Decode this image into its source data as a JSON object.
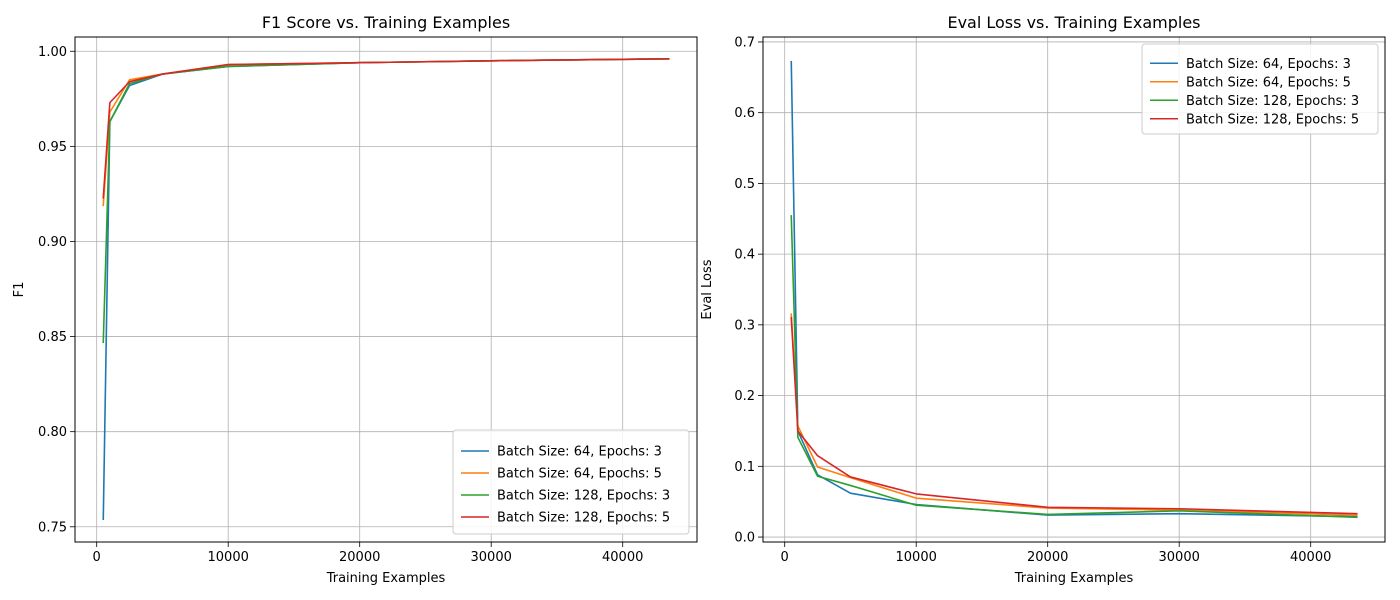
{
  "chart_data": [
    {
      "type": "line",
      "title": "F1 Score vs. Training Examples",
      "xlabel": "Training Examples",
      "ylabel": "F1",
      "xlim": [
        -1650,
        45650
      ],
      "ylim": [
        0.742,
        1.0075
      ],
      "xticks": [
        0,
        10000,
        20000,
        30000,
        40000
      ],
      "xtick_labels": [
        "0",
        "10000",
        "20000",
        "30000",
        "40000"
      ],
      "yticks": [
        0.75,
        0.8,
        0.85,
        0.9,
        0.95,
        1.0
      ],
      "ytick_labels": [
        "0.75",
        "0.80",
        "0.85",
        "0.90",
        "0.95",
        "1.00"
      ],
      "grid": true,
      "legend_position": "lower-right",
      "series": [
        {
          "name": "Batch Size: 64, Epochs: 3",
          "color": "#1f77b4",
          "x": [
            500,
            1000,
            2500,
            5000,
            10000,
            20000,
            30000,
            43500
          ],
          "y": [
            0.754,
            0.963,
            0.982,
            0.988,
            0.992,
            0.994,
            0.995,
            0.996
          ]
        },
        {
          "name": "Batch Size: 64, Epochs: 5",
          "color": "#ff7f0e",
          "x": [
            500,
            1000,
            2500,
            5000,
            10000,
            20000,
            30000,
            43500
          ],
          "y": [
            0.919,
            0.968,
            0.985,
            0.988,
            0.993,
            0.994,
            0.995,
            0.996
          ]
        },
        {
          "name": "Batch Size: 128, Epochs: 3",
          "color": "#2ca02c",
          "x": [
            500,
            1000,
            2500,
            5000,
            10000,
            20000,
            30000,
            43500
          ],
          "y": [
            0.847,
            0.963,
            0.983,
            0.988,
            0.992,
            0.994,
            0.995,
            0.996
          ]
        },
        {
          "name": "Batch Size: 128, Epochs: 5",
          "color": "#d62728",
          "x": [
            500,
            1000,
            2500,
            5000,
            10000,
            20000,
            30000,
            43500
          ],
          "y": [
            0.923,
            0.973,
            0.984,
            0.988,
            0.993,
            0.994,
            0.995,
            0.996
          ]
        }
      ]
    },
    {
      "type": "line",
      "title": "Eval Loss vs. Training Examples",
      "xlabel": "Training Examples",
      "ylabel": "Eval Loss",
      "xlim": [
        -1650,
        45650
      ],
      "ylim": [
        -0.007,
        0.707
      ],
      "xticks": [
        0,
        10000,
        20000,
        30000,
        40000
      ],
      "xtick_labels": [
        "0",
        "10000",
        "20000",
        "30000",
        "40000"
      ],
      "yticks": [
        0.0,
        0.1,
        0.2,
        0.3,
        0.4,
        0.5,
        0.6,
        0.7
      ],
      "ytick_labels": [
        "0.0",
        "0.1",
        "0.2",
        "0.3",
        "0.4",
        "0.5",
        "0.6",
        "0.7"
      ],
      "grid": true,
      "legend_position": "upper-right",
      "series": [
        {
          "name": "Batch Size: 64, Epochs: 3",
          "color": "#1f77b4",
          "x": [
            500,
            1000,
            2500,
            5000,
            10000,
            20000,
            30000,
            43500
          ],
          "y": [
            0.672,
            0.15,
            0.088,
            0.062,
            0.046,
            0.031,
            0.033,
            0.029
          ]
        },
        {
          "name": "Batch Size: 64, Epochs: 5",
          "color": "#ff7f0e",
          "x": [
            500,
            1000,
            2500,
            5000,
            10000,
            20000,
            30000,
            43500
          ],
          "y": [
            0.315,
            0.157,
            0.099,
            0.084,
            0.055,
            0.041,
            0.038,
            0.031
          ]
        },
        {
          "name": "Batch Size: 128, Epochs: 3",
          "color": "#2ca02c",
          "x": [
            500,
            1000,
            2500,
            5000,
            10000,
            20000,
            30000,
            43500
          ],
          "y": [
            0.454,
            0.141,
            0.086,
            0.073,
            0.045,
            0.032,
            0.037,
            0.028
          ]
        },
        {
          "name": "Batch Size: 128, Epochs: 5",
          "color": "#d62728",
          "x": [
            500,
            1000,
            2500,
            5000,
            10000,
            20000,
            30000,
            43500
          ],
          "y": [
            0.31,
            0.15,
            0.115,
            0.085,
            0.061,
            0.042,
            0.04,
            0.033
          ]
        }
      ]
    }
  ]
}
